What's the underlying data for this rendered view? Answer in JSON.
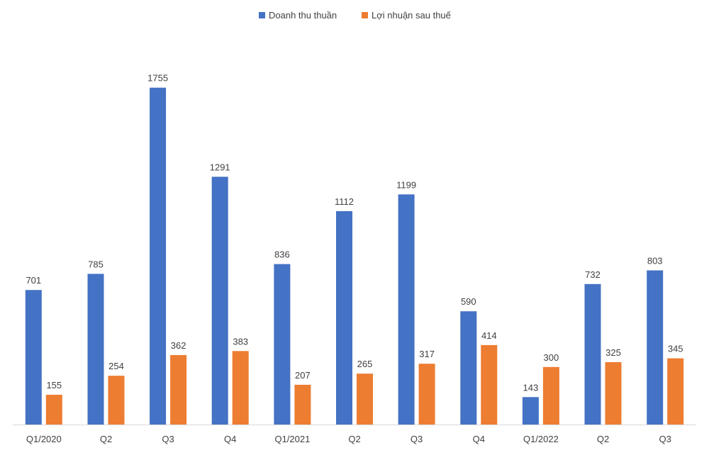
{
  "chart_data": {
    "type": "bar",
    "title": "",
    "xlabel": "",
    "ylabel": "",
    "categories": [
      "Q1/2020",
      "Q2",
      "Q3",
      "Q4",
      "Q1/2021",
      "Q2",
      "Q3",
      "Q4",
      "Q1/2022",
      "Q2",
      "Q3"
    ],
    "series": [
      {
        "name": "Doanh thu thuần",
        "color": "#4472C4",
        "values": [
          701,
          785,
          1755,
          1291,
          836,
          1112,
          1199,
          590,
          143,
          732,
          803
        ]
      },
      {
        "name": "Lợi nhuận sau thuế",
        "color": "#ED7D31",
        "values": [
          155,
          254,
          362,
          383,
          207,
          265,
          317,
          414,
          300,
          325,
          345
        ]
      }
    ],
    "ylim": [
      0,
      1900
    ],
    "grid": false,
    "legend_position": "top-center",
    "data_labels": true
  }
}
